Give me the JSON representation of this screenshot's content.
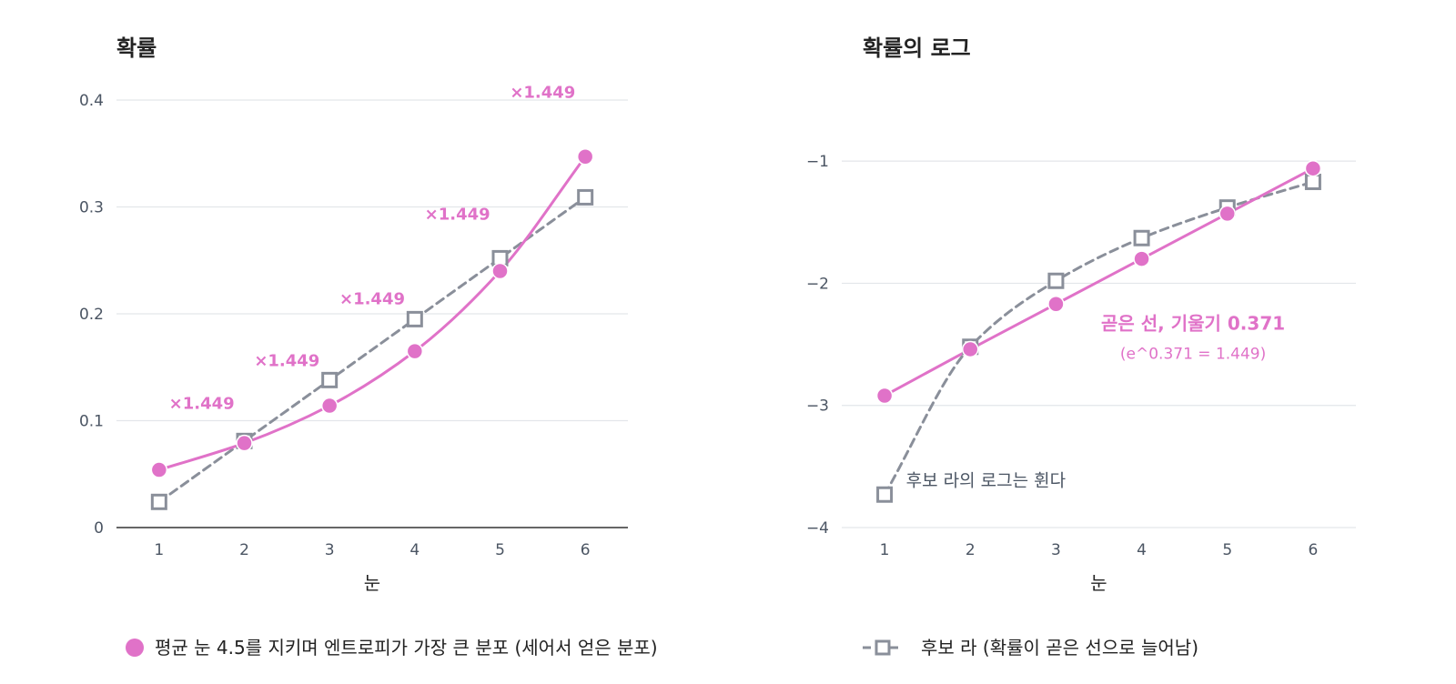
{
  "colors": {
    "pink": "#e072c8",
    "gray": "#8a8f9a",
    "grid": "#e3e6ea",
    "axis": "#333333",
    "text": "#222222",
    "tick": "#4b5563"
  },
  "legend": {
    "pink_label": "평균 눈 4.5를 지키며 엔트로피가 가장 큰 분포 (세어서 얻은 분포)",
    "gray_label": "후보 라 (확률이 곧은 선으로 늘어남)"
  },
  "chart_data": [
    {
      "type": "line",
      "title": "확률",
      "xlabel": "눈",
      "ylabel": "",
      "x": [
        1,
        2,
        3,
        4,
        5,
        6
      ],
      "xlim": [
        0.5,
        6.5
      ],
      "ylim": [
        0,
        0.4
      ],
      "yticks": [
        0,
        0.1,
        0.2,
        0.3,
        0.4
      ],
      "ytick_labels": [
        "0",
        "0.1",
        "0.2",
        "0.3",
        "0.4"
      ],
      "grid": true,
      "series": [
        {
          "name": "평균 눈 4.5를 지키며 엔트로피가 가장 큰 분포 (세어서 얻은 분포)",
          "marker": "circle",
          "line": "solid",
          "values": [
            0.054,
            0.079,
            0.114,
            0.165,
            0.24,
            0.347
          ]
        },
        {
          "name": "후보 라 (확률이 곧은 선으로 늘어남)",
          "marker": "square",
          "line": "dashed",
          "values": [
            0.024,
            0.081,
            0.138,
            0.195,
            0.252,
            0.309
          ]
        }
      ],
      "annotations": [
        {
          "text": "×1.449",
          "x": 1.5,
          "y": 0.111
        },
        {
          "text": "×1.449",
          "x": 2.5,
          "y": 0.151
        },
        {
          "text": "×1.449",
          "x": 3.5,
          "y": 0.209
        },
        {
          "text": "×1.449",
          "x": 4.5,
          "y": 0.288
        },
        {
          "text": "×1.449",
          "x": 5.5,
          "y": 0.402
        }
      ]
    },
    {
      "type": "line",
      "title": "확률의 로그",
      "xlabel": "눈",
      "ylabel": "",
      "x": [
        1,
        2,
        3,
        4,
        5,
        6
      ],
      "xlim": [
        0.5,
        6.5
      ],
      "ylim": [
        -4,
        -0.5
      ],
      "yticks": [
        -4,
        -3,
        -2,
        -1
      ],
      "ytick_labels": [
        "−4",
        "−3",
        "−2",
        "−1"
      ],
      "grid": true,
      "series": [
        {
          "name": "평균 눈 4.5를 지키며 엔트로피가 가장 큰 분포 (세어서 얻은 분포)",
          "marker": "circle",
          "line": "solid",
          "values": [
            -2.92,
            -2.54,
            -2.17,
            -1.8,
            -1.43,
            -1.06
          ]
        },
        {
          "name": "후보 라 (확률이 곧은 선으로 늘어남)",
          "marker": "square",
          "line": "dashed",
          "values": [
            -3.73,
            -2.52,
            -1.98,
            -1.63,
            -1.38,
            -1.17
          ]
        }
      ],
      "annotations": [
        {
          "text": "곧은 선, 기울기 0.371",
          "x": 4.6,
          "y": -2.38,
          "style": "main"
        },
        {
          "text": "(e^0.371 = 1.449)",
          "x": 4.6,
          "y": -2.62,
          "style": "sub"
        },
        {
          "text": "후보 라의 로그는 휜다",
          "x": 1.25,
          "y": -3.66,
          "style": "gray"
        }
      ]
    }
  ]
}
